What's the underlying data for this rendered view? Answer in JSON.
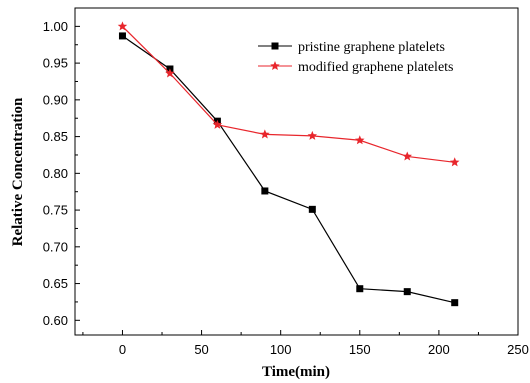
{
  "chart_data": {
    "type": "line",
    "title": "",
    "xlabel": "Time(min)",
    "ylabel": "Relative Concentration",
    "xlim": [
      -30,
      250
    ],
    "ylim": [
      0.58,
      1.025
    ],
    "xticks": [
      0,
      50,
      100,
      150,
      200,
      250
    ],
    "xtick_labels": [
      "0",
      "50",
      "100",
      "150",
      "200",
      "250"
    ],
    "yticks": [
      0.6,
      0.65,
      0.7,
      0.75,
      0.8,
      0.85,
      0.9,
      0.95,
      1.0
    ],
    "ytick_labels": [
      "0.60",
      "0.65",
      "0.70",
      "0.75",
      "0.80",
      "0.85",
      "0.90",
      "0.95",
      "1.00"
    ],
    "grid": false,
    "legend_position": "top-right",
    "series": [
      {
        "name": "pristine graphene platelets",
        "color": "#000000",
        "marker": "square",
        "x": [
          0,
          30,
          60,
          90,
          120,
          150,
          180,
          210
        ],
        "y": [
          0.987,
          0.942,
          0.871,
          0.776,
          0.751,
          0.643,
          0.639,
          0.624
        ]
      },
      {
        "name": "modified graphene platelets",
        "color": "#e8262c",
        "marker": "star",
        "x": [
          0,
          30,
          60,
          90,
          120,
          150,
          180,
          210
        ],
        "y": [
          1.0,
          0.936,
          0.866,
          0.853,
          0.851,
          0.845,
          0.823,
          0.815
        ]
      }
    ]
  }
}
